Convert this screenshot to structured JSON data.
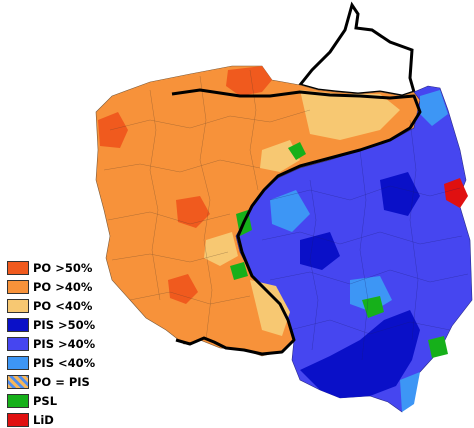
{
  "legend": {
    "items": [
      {
        "label": "PO >50%",
        "color": "#f05a1e",
        "pattern": "solid"
      },
      {
        "label": "PO >40%",
        "color": "#f7923a",
        "pattern": "solid"
      },
      {
        "label": "PO <40%",
        "color": "#f7c872",
        "pattern": "solid"
      },
      {
        "label": "PIS >50%",
        "color": "#0a10c8",
        "pattern": "solid"
      },
      {
        "label": "PIS >40%",
        "color": "#4646f0",
        "pattern": "solid"
      },
      {
        "label": "PIS <40%",
        "color": "#3d96f5",
        "pattern": "solid"
      },
      {
        "label": "PO = PIS",
        "color": "#f7b75a",
        "pattern": "striped"
      },
      {
        "label": "PSL",
        "color": "#16b01a",
        "pattern": "solid"
      },
      {
        "label": "LiD",
        "color": "#e01010",
        "pattern": "solid"
      }
    ]
  },
  "map_colors": {
    "po_region": "#f7923a",
    "po_strong": "#f05a1e",
    "po_weak": "#f7c872",
    "pis_region": "#4646f0",
    "pis_strong": "#0a10c8",
    "pis_weak": "#3d96f5",
    "psl": "#16b01a",
    "lid": "#e01010",
    "external": "#ffffff",
    "border_line": "#000000",
    "district_line": "#7a5a3a"
  }
}
